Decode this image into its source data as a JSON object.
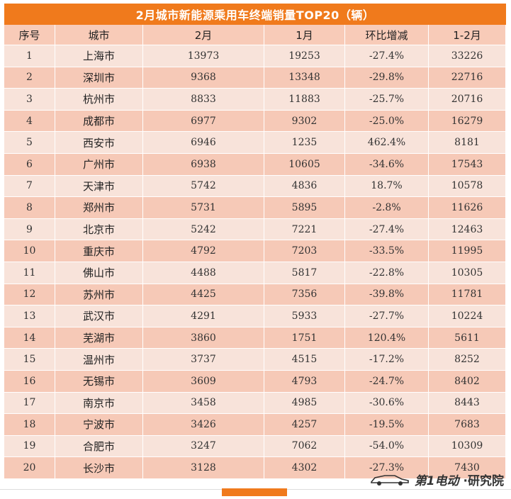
{
  "title": "2月城市新能源乘用车终端销量TOP20（辆）",
  "headers": [
    "序号",
    "城市",
    "2月",
    "1月",
    "环比增减",
    "1-2月"
  ],
  "rows": [
    [
      "1",
      "上海市",
      "13973",
      "19253",
      "-27.4%",
      "33226"
    ],
    [
      "2",
      "深圳市",
      "9368",
      "13348",
      "-29.8%",
      "22716"
    ],
    [
      "3",
      "杭州市",
      "8833",
      "11883",
      "-25.7%",
      "20716"
    ],
    [
      "4",
      "成都市",
      "6977",
      "9302",
      "-25.0%",
      "16279"
    ],
    [
      "5",
      "西安市",
      "6946",
      "1235",
      "462.4%",
      "8181"
    ],
    [
      "6",
      "广州市",
      "6938",
      "10605",
      "-34.6%",
      "17543"
    ],
    [
      "7",
      "天津市",
      "5742",
      "4836",
      "18.7%",
      "10578"
    ],
    [
      "8",
      "郑州市",
      "5731",
      "5895",
      "-2.8%",
      "11626"
    ],
    [
      "9",
      "北京市",
      "5242",
      "7221",
      "-27.4%",
      "12463"
    ],
    [
      "10",
      "重庆市",
      "4792",
      "7203",
      "-33.5%",
      "11995"
    ],
    [
      "11",
      "佛山市",
      "4488",
      "5817",
      "-22.8%",
      "10305"
    ],
    [
      "12",
      "苏州市",
      "4425",
      "7356",
      "-39.8%",
      "11781"
    ],
    [
      "13",
      "武汉市",
      "4291",
      "5933",
      "-27.7%",
      "10224"
    ],
    [
      "14",
      "芜湖市",
      "3860",
      "1751",
      "120.4%",
      "5611"
    ],
    [
      "15",
      "温州市",
      "3737",
      "4515",
      "-17.2%",
      "8252"
    ],
    [
      "16",
      "无锡市",
      "3609",
      "4793",
      "-24.7%",
      "8402"
    ],
    [
      "17",
      "南京市",
      "3458",
      "4985",
      "-30.6%",
      "8443"
    ],
    [
      "18",
      "宁波市",
      "3426",
      "4257",
      "-19.5%",
      "7683"
    ],
    [
      "19",
      "合肥市",
      "3247",
      "7062",
      "-54.0%",
      "10309"
    ],
    [
      "20",
      "长沙市",
      "3128",
      "4302",
      "-27.3%",
      "7430"
    ]
  ],
  "logo": {
    "brand_text": "第1电动",
    "suffix_text": "·研究院"
  },
  "colors": {
    "accent": "#f07a1c",
    "header_bg": "#f8cbb8",
    "row_light": "#f8e3da",
    "row_dark": "#f6c9b7"
  }
}
